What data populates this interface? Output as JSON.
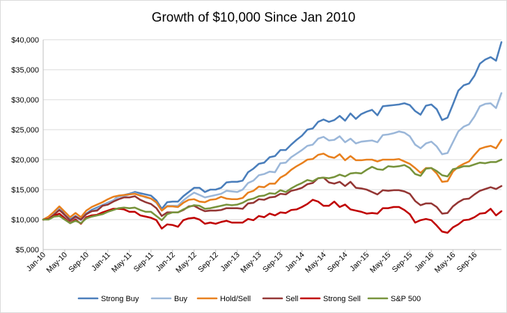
{
  "chart_data": {
    "type": "line",
    "title": "Growth of $10,000 Since Jan 2010",
    "xlabel": "",
    "ylabel": "",
    "ylim": [
      5000,
      40000
    ],
    "yticks": [
      5000,
      10000,
      15000,
      20000,
      25000,
      30000,
      35000,
      40000
    ],
    "ytick_labels": [
      "$5,000",
      "$10,000",
      "$15,000",
      "$20,000",
      "$25,000",
      "$30,000",
      "$35,000",
      "$40,000"
    ],
    "x_start": "Jan-10",
    "x_tick_labels": [
      "Jan-10",
      "May-10",
      "Sep-10",
      "Jan-11",
      "May-11",
      "Sep-11",
      "Jan-12",
      "May-12",
      "Sep-12",
      "Jan-13",
      "May-13",
      "Sep-13",
      "Jan-14",
      "May-14",
      "Sep-14",
      "Jan-15",
      "May-15",
      "Sep-15",
      "Jan-16",
      "May-16",
      "Sep-16"
    ],
    "x_tick_every_months": 4,
    "grid": true,
    "legend_position": "bottom",
    "series": [
      {
        "name": "Strong Buy",
        "color": "#4a7ebb",
        "values": [
          10000,
          10450,
          11000,
          11900,
          10800,
          10000,
          10600,
          10000,
          11000,
          11600,
          12000,
          12400,
          12800,
          13200,
          13900,
          14100,
          14300,
          14600,
          14400,
          14200,
          14000,
          13200,
          11800,
          12900,
          13000,
          13000,
          13900,
          14600,
          15300,
          15300,
          14600,
          15000,
          15000,
          15300,
          16200,
          16300,
          16300,
          16500,
          17900,
          18500,
          19300,
          19500,
          20400,
          20600,
          21600,
          21600,
          22500,
          23300,
          24000,
          25000,
          25200,
          26300,
          26700,
          26300,
          26600,
          27300,
          26500,
          27700,
          26800,
          27600,
          28000,
          28300,
          27400,
          28900,
          29000,
          29100,
          29200,
          29400,
          29100,
          28100,
          27500,
          29000,
          29200,
          28400,
          26600,
          27000,
          29200,
          31500,
          32400,
          32700,
          34000,
          36000,
          36700,
          37100,
          36500,
          39600
        ]
      },
      {
        "name": "Buy",
        "color": "#9bb7d9",
        "values": [
          10000,
          10350,
          10900,
          11800,
          10600,
          9800,
          10300,
          9900,
          10900,
          11400,
          11800,
          12300,
          12700,
          13200,
          13800,
          13900,
          14200,
          14400,
          14100,
          13700,
          13500,
          12800,
          11500,
          12300,
          12300,
          12300,
          13200,
          13900,
          14500,
          14100,
          13700,
          13900,
          14100,
          14300,
          14800,
          14700,
          14600,
          15000,
          16100,
          16500,
          17400,
          17600,
          18000,
          17900,
          19400,
          19500,
          20400,
          21000,
          21600,
          22300,
          22500,
          23500,
          23800,
          23200,
          23300,
          23900,
          22900,
          23500,
          22700,
          23000,
          23100,
          23200,
          22900,
          24100,
          24200,
          24400,
          24700,
          24500,
          23900,
          22500,
          21900,
          22700,
          23000,
          22200,
          20900,
          21100,
          22900,
          24700,
          25500,
          25900,
          27200,
          28900,
          29300,
          29400,
          28600,
          31100
        ]
      },
      {
        "name": "Hold/Sell",
        "color": "#e8801e",
        "values": [
          10000,
          10500,
          11300,
          12200,
          11300,
          10400,
          11100,
          10400,
          11500,
          12100,
          12500,
          12900,
          13400,
          13800,
          14000,
          14100,
          14200,
          14300,
          14000,
          13800,
          13500,
          12900,
          11500,
          12200,
          12200,
          12100,
          12800,
          13300,
          13400,
          13000,
          12900,
          13300,
          13400,
          13800,
          13500,
          13400,
          13400,
          13600,
          14500,
          14800,
          15500,
          15400,
          16000,
          16000,
          17000,
          17500,
          18300,
          18900,
          19400,
          20000,
          20100,
          20800,
          21000,
          20500,
          20300,
          20900,
          19900,
          20600,
          19900,
          19900,
          20000,
          20000,
          19700,
          20000,
          20000,
          20000,
          20100,
          19700,
          19300,
          18600,
          17800,
          18600,
          18600,
          17700,
          16300,
          16400,
          18000,
          18800,
          19300,
          19700,
          20800,
          21800,
          22100,
          22300,
          21900,
          23300
        ]
      },
      {
        "name": "Sell",
        "color": "#943634",
        "values": [
          10000,
          10100,
          10800,
          11600,
          10800,
          9800,
          10500,
          10000,
          10900,
          11400,
          11500,
          12300,
          12500,
          13000,
          13400,
          13700,
          13700,
          13900,
          13300,
          12900,
          12600,
          11900,
          10600,
          11200,
          11200,
          11200,
          11600,
          12200,
          12300,
          11800,
          11400,
          11500,
          11500,
          11600,
          11900,
          11900,
          11900,
          11800,
          12700,
          12800,
          13400,
          13300,
          13700,
          13800,
          14300,
          14200,
          14800,
          15000,
          15300,
          15900,
          16100,
          16900,
          17000,
          16200,
          16000,
          16300,
          15600,
          16300,
          15300,
          15200,
          15000,
          14600,
          14200,
          14900,
          14800,
          14900,
          14900,
          14700,
          14300,
          13100,
          12400,
          12700,
          12700,
          12100,
          11000,
          11100,
          12200,
          12900,
          13400,
          13500,
          14200,
          14800,
          15100,
          15400,
          15100,
          15600
        ]
      },
      {
        "name": "Strong Sell",
        "color": "#c00000",
        "values": [
          10000,
          10100,
          10600,
          11000,
          10200,
          9400,
          10000,
          9300,
          10400,
          10700,
          10800,
          11200,
          11500,
          11800,
          11800,
          11700,
          11300,
          11300,
          10700,
          10500,
          10300,
          9900,
          8500,
          9200,
          9100,
          8800,
          9900,
          10200,
          10300,
          10000,
          9300,
          9500,
          9300,
          9600,
          9800,
          9500,
          9500,
          9500,
          10100,
          9900,
          10600,
          10400,
          11000,
          10700,
          11200,
          11100,
          11600,
          11700,
          12100,
          12600,
          13300,
          13000,
          12300,
          12300,
          13000,
          12100,
          12500,
          11700,
          11500,
          11300,
          11000,
          11100,
          11000,
          11900,
          11900,
          12100,
          12100,
          11600,
          10900,
          9500,
          9900,
          10100,
          9900,
          9000,
          8000,
          7800,
          8700,
          9200,
          9900,
          10000,
          10400,
          11000,
          11100,
          11800,
          10700,
          11400
        ]
      },
      {
        "name": "S&P 500",
        "color": "#77933c",
        "values": [
          10000,
          10000,
          10500,
          10600,
          10000,
          9400,
          9800,
          9400,
          10200,
          10500,
          10700,
          10900,
          11300,
          11600,
          11900,
          12000,
          11900,
          12000,
          11600,
          11300,
          11300,
          10600,
          9900,
          10900,
          11200,
          11200,
          11700,
          12100,
          12400,
          12300,
          11800,
          11900,
          12100,
          12300,
          12500,
          12400,
          12500,
          12800,
          13300,
          13500,
          13900,
          14000,
          14400,
          14300,
          14900,
          14600,
          15200,
          15700,
          16100,
          16600,
          16400,
          16900,
          17000,
          16900,
          17100,
          17500,
          17200,
          17700,
          17800,
          17700,
          18300,
          18800,
          18400,
          18300,
          18900,
          18800,
          18900,
          19100,
          18600,
          17600,
          17300,
          18500,
          18600,
          18100,
          17400,
          17200,
          18400,
          18600,
          18900,
          18900,
          19200,
          19500,
          19400,
          19600,
          19600,
          20000
        ]
      }
    ]
  }
}
